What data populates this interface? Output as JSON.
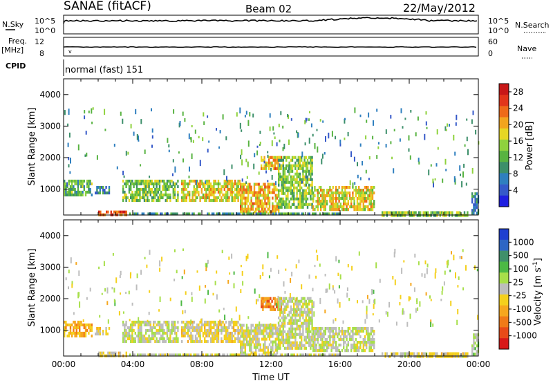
{
  "header": {
    "station": "SANAE (fitACF)",
    "beam": "Beam 02",
    "date": "22/May/2012"
  },
  "top_panels": {
    "nsky_label": "N.Sky",
    "nsky_ticks": [
      "10^5",
      "10^0"
    ],
    "nsearch_label": "N.Search",
    "nsearch_ticks": [
      "10^5",
      "10^0"
    ],
    "freq_label": "Freq.",
    "freq_unit": "[MHz]",
    "freq_ticks": [
      "12",
      "8"
    ],
    "nave_label": "Nave",
    "nave_ticks": [
      "60",
      "0"
    ],
    "cpid_label": "CPID",
    "cpid_text": "normal (fast) 151"
  },
  "chart_data": [
    {
      "type": "heatmap",
      "panel": "power",
      "ylabel": "Slant Range [km]",
      "ylim": [
        180,
        4500
      ],
      "yticks": [
        1000,
        2000,
        3000,
        4000
      ],
      "xlim": [
        0,
        24
      ],
      "colorbar": {
        "label": "Power [dB]",
        "ticks": [
          "4",
          "8",
          "12",
          "16",
          "20",
          "24",
          "28"
        ],
        "range": [
          0,
          30
        ],
        "colors": [
          "#1f1fe0",
          "#3559c9",
          "#2f7fbf",
          "#3c8f6a",
          "#58b341",
          "#8fd23d",
          "#e6d624",
          "#f2a41e",
          "#ee6a18",
          "#e2351a",
          "#c81818"
        ]
      },
      "features": [
        {
          "start_h": 0.0,
          "end_h": 1.6,
          "range_lo": 800,
          "range_hi": 1300,
          "value": 12
        },
        {
          "start_h": 1.8,
          "end_h": 2.6,
          "range_lo": 900,
          "range_hi": 1100,
          "value": 8
        },
        {
          "start_h": 3.4,
          "end_h": 6.6,
          "range_lo": 600,
          "range_hi": 1300,
          "value": 14
        },
        {
          "start_h": 6.8,
          "end_h": 10.2,
          "range_lo": 600,
          "range_hi": 1300,
          "value": 18
        },
        {
          "start_h": 10.2,
          "end_h": 12.4,
          "range_lo": 300,
          "range_hi": 1200,
          "value": 20
        },
        {
          "start_h": 11.4,
          "end_h": 12.6,
          "range_lo": 1650,
          "range_hi": 2050,
          "value": 20
        },
        {
          "start_h": 12.4,
          "end_h": 14.4,
          "range_lo": 400,
          "range_hi": 2050,
          "value": 14
        },
        {
          "start_h": 14.4,
          "end_h": 18.0,
          "range_lo": 350,
          "range_hi": 1100,
          "value": 18
        },
        {
          "start_h": 2.0,
          "end_h": 3.6,
          "range_lo": 180,
          "range_hi": 320,
          "value": 24
        },
        {
          "start_h": 3.8,
          "end_h": 16.0,
          "range_lo": 180,
          "range_hi": 260,
          "value": 10
        },
        {
          "start_h": 18.4,
          "end_h": 23.4,
          "range_lo": 180,
          "range_hi": 300,
          "value": 14
        },
        {
          "start_h": 23.6,
          "end_h": 24.0,
          "range_lo": 200,
          "range_hi": 900,
          "value": 8
        }
      ]
    },
    {
      "type": "heatmap",
      "panel": "velocity",
      "ylabel": "Slant Range [km]",
      "ylim": [
        180,
        4500
      ],
      "yticks": [
        1000,
        2000,
        3000,
        4000
      ],
      "xlim": [
        0,
        24
      ],
      "xlabel": "Time UT",
      "xticks": [
        "00:00",
        "04:00",
        "08:00",
        "12:00",
        "16:00",
        "20:00",
        "00:00"
      ],
      "colorbar": {
        "label": "Velocity [m s^-1]",
        "ticks": [
          "1000",
          "500",
          "100",
          "25",
          "-25",
          "-100",
          "-500",
          "-1000"
        ],
        "range": [
          -1250,
          1250
        ],
        "colors": [
          "#1f3fd0",
          "#2e66c4",
          "#3f8f6a",
          "#4cb944",
          "#a7df4a",
          "#bdbdbd",
          "#f4d01c",
          "#f6a71e",
          "#f07a18",
          "#e84a18",
          "#d81818"
        ]
      },
      "features": [
        {
          "start_h": 0.0,
          "end_h": 1.6,
          "range_lo": 800,
          "range_hi": 1300,
          "value": -400
        },
        {
          "start_h": 1.8,
          "end_h": 2.6,
          "range_lo": 900,
          "range_hi": 1100,
          "value": -150
        },
        {
          "start_h": 3.4,
          "end_h": 6.6,
          "range_lo": 600,
          "range_hi": 1300,
          "value": 50
        },
        {
          "start_h": 6.8,
          "end_h": 10.2,
          "range_lo": 600,
          "range_hi": 1300,
          "value": -120
        },
        {
          "start_h": 10.2,
          "end_h": 12.4,
          "range_lo": 300,
          "range_hi": 1200,
          "value": 0
        },
        {
          "start_h": 11.4,
          "end_h": 12.6,
          "range_lo": 1650,
          "range_hi": 2050,
          "value": -600
        },
        {
          "start_h": 12.4,
          "end_h": 14.4,
          "range_lo": 400,
          "range_hi": 2050,
          "value": 40
        },
        {
          "start_h": 14.4,
          "end_h": 18.0,
          "range_lo": 350,
          "range_hi": 1100,
          "value": 60
        },
        {
          "start_h": 2.0,
          "end_h": 3.6,
          "range_lo": 180,
          "range_hi": 320,
          "value": -150
        },
        {
          "start_h": 3.8,
          "end_h": 16.0,
          "range_lo": 180,
          "range_hi": 260,
          "value": -60
        },
        {
          "start_h": 18.4,
          "end_h": 23.4,
          "range_lo": 180,
          "range_hi": 300,
          "value": -120
        },
        {
          "start_h": 23.6,
          "end_h": 24.0,
          "range_lo": 200,
          "range_hi": 900,
          "value": 200
        }
      ]
    }
  ]
}
